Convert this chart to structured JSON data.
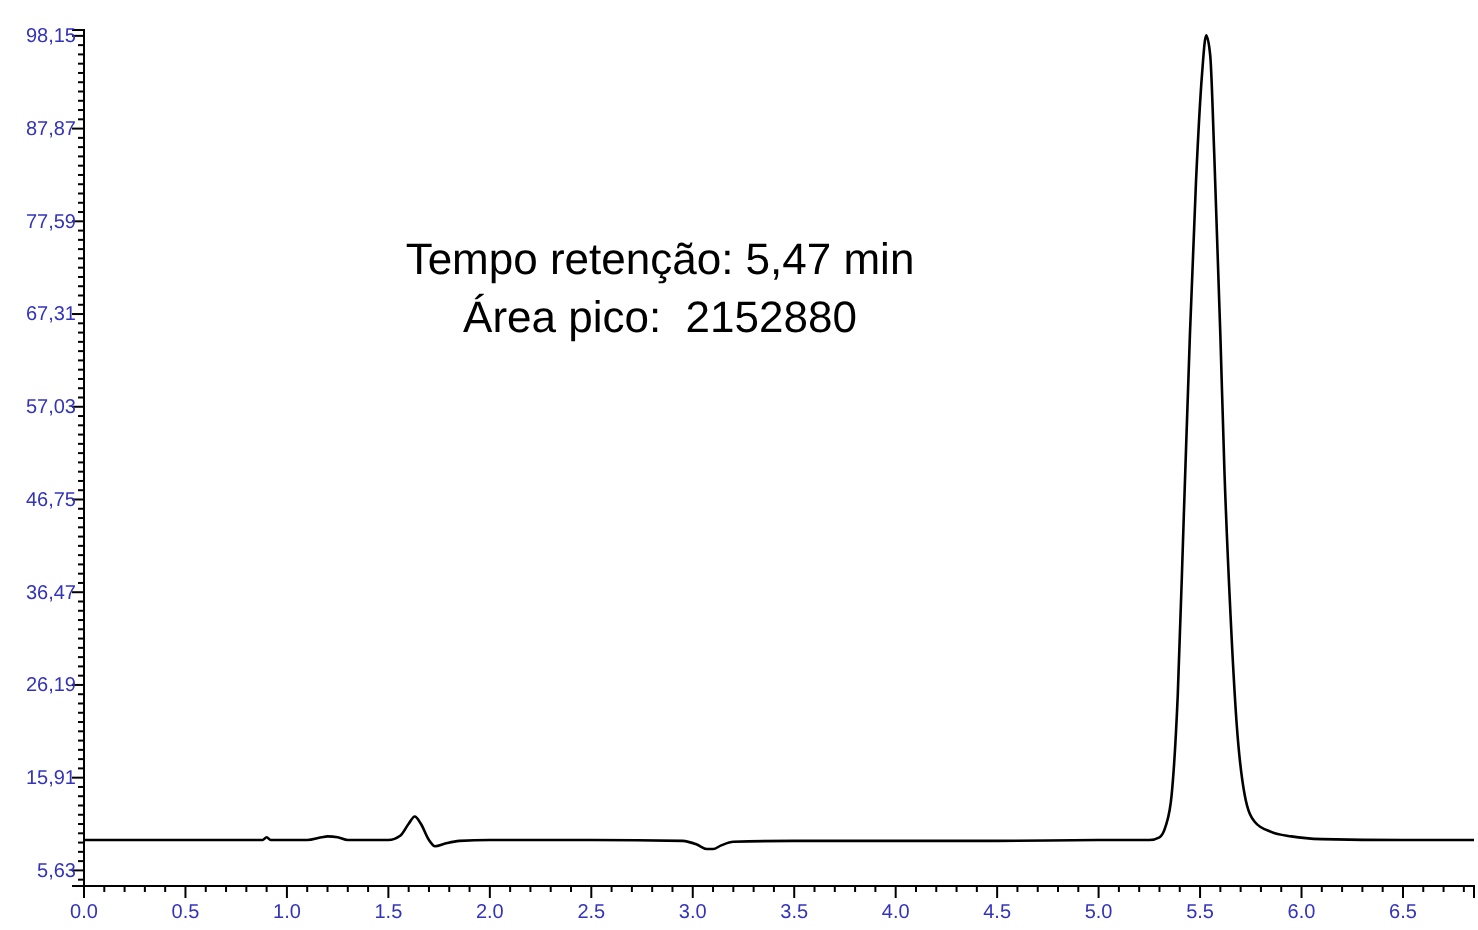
{
  "chart_data": {
    "type": "line",
    "marker": "none",
    "line_style": "solid",
    "grid": false,
    "x": [
      0,
      0.3,
      0.6,
      0.88,
      0.9,
      0.92,
      1.1,
      1.17,
      1.2,
      1.25,
      1.3,
      1.5,
      1.56,
      1.6,
      1.63,
      1.66,
      1.7,
      1.73,
      1.78,
      1.85,
      2.0,
      2.5,
      2.95,
      3.02,
      3.07,
      3.1,
      3.14,
      3.2,
      3.5,
      4.0,
      4.5,
      5.0,
      5.25,
      5.3,
      5.33,
      5.36,
      5.39,
      5.42,
      5.45,
      5.48,
      5.51,
      5.53,
      5.55,
      5.57,
      5.6,
      5.62,
      5.65,
      5.68,
      5.72,
      5.77,
      5.85,
      5.95,
      6.1,
      6.5,
      6.85
    ],
    "series": [
      {
        "color": "#000000",
        "values": [
          9.0,
          9.0,
          9.0,
          9.0,
          9.3,
          9.0,
          9.0,
          9.3,
          9.4,
          9.3,
          9.0,
          9.0,
          9.5,
          10.8,
          11.6,
          10.8,
          9.0,
          8.3,
          8.6,
          8.9,
          9.0,
          9.0,
          8.9,
          8.5,
          8.0,
          8.0,
          8.4,
          8.8,
          8.9,
          8.9,
          8.9,
          9.0,
          9.0,
          9.3,
          10.5,
          14,
          25,
          45,
          65,
          82,
          94,
          98.2,
          96,
          85,
          65,
          50,
          34,
          22,
          14,
          11,
          9.9,
          9.4,
          9.1,
          9.0,
          9.0
        ]
      }
    ],
    "xlim": [
      0,
      6.85
    ],
    "ylim": [
      3.9,
      98.8
    ],
    "xticks": [
      {
        "value": 0,
        "label": "0.0"
      },
      {
        "value": 0.5,
        "label": "0.5"
      },
      {
        "value": 1,
        "label": "1.0"
      },
      {
        "value": 1.5,
        "label": "1.5"
      },
      {
        "value": 2,
        "label": "2.0"
      },
      {
        "value": 2.5,
        "label": "2.5"
      },
      {
        "value": 3,
        "label": "3.0"
      },
      {
        "value": 3.5,
        "label": "3.5"
      },
      {
        "value": 4,
        "label": "4.0"
      },
      {
        "value": 4.5,
        "label": "4.5"
      },
      {
        "value": 5,
        "label": "5.0"
      },
      {
        "value": 5.5,
        "label": "5.5"
      },
      {
        "value": 6,
        "label": "6.0"
      },
      {
        "value": 6.5,
        "label": "6.5"
      }
    ],
    "yticks": [
      {
        "value": 5.63,
        "label": "5,63"
      },
      {
        "value": 15.91,
        "label": "15,91"
      },
      {
        "value": 26.19,
        "label": "26,19"
      },
      {
        "value": 36.47,
        "label": "36,47"
      },
      {
        "value": 46.75,
        "label": "46,75"
      },
      {
        "value": 57.03,
        "label": "57,03"
      },
      {
        "value": 67.31,
        "label": "67,31"
      },
      {
        "value": 77.59,
        "label": "77,59"
      },
      {
        "value": 87.87,
        "label": "87,87"
      },
      {
        "value": 98.15,
        "label": "98,15"
      }
    ],
    "annotations": [
      "Tempo retenção: 5,47 min",
      "Área pico:  2152880"
    ]
  }
}
